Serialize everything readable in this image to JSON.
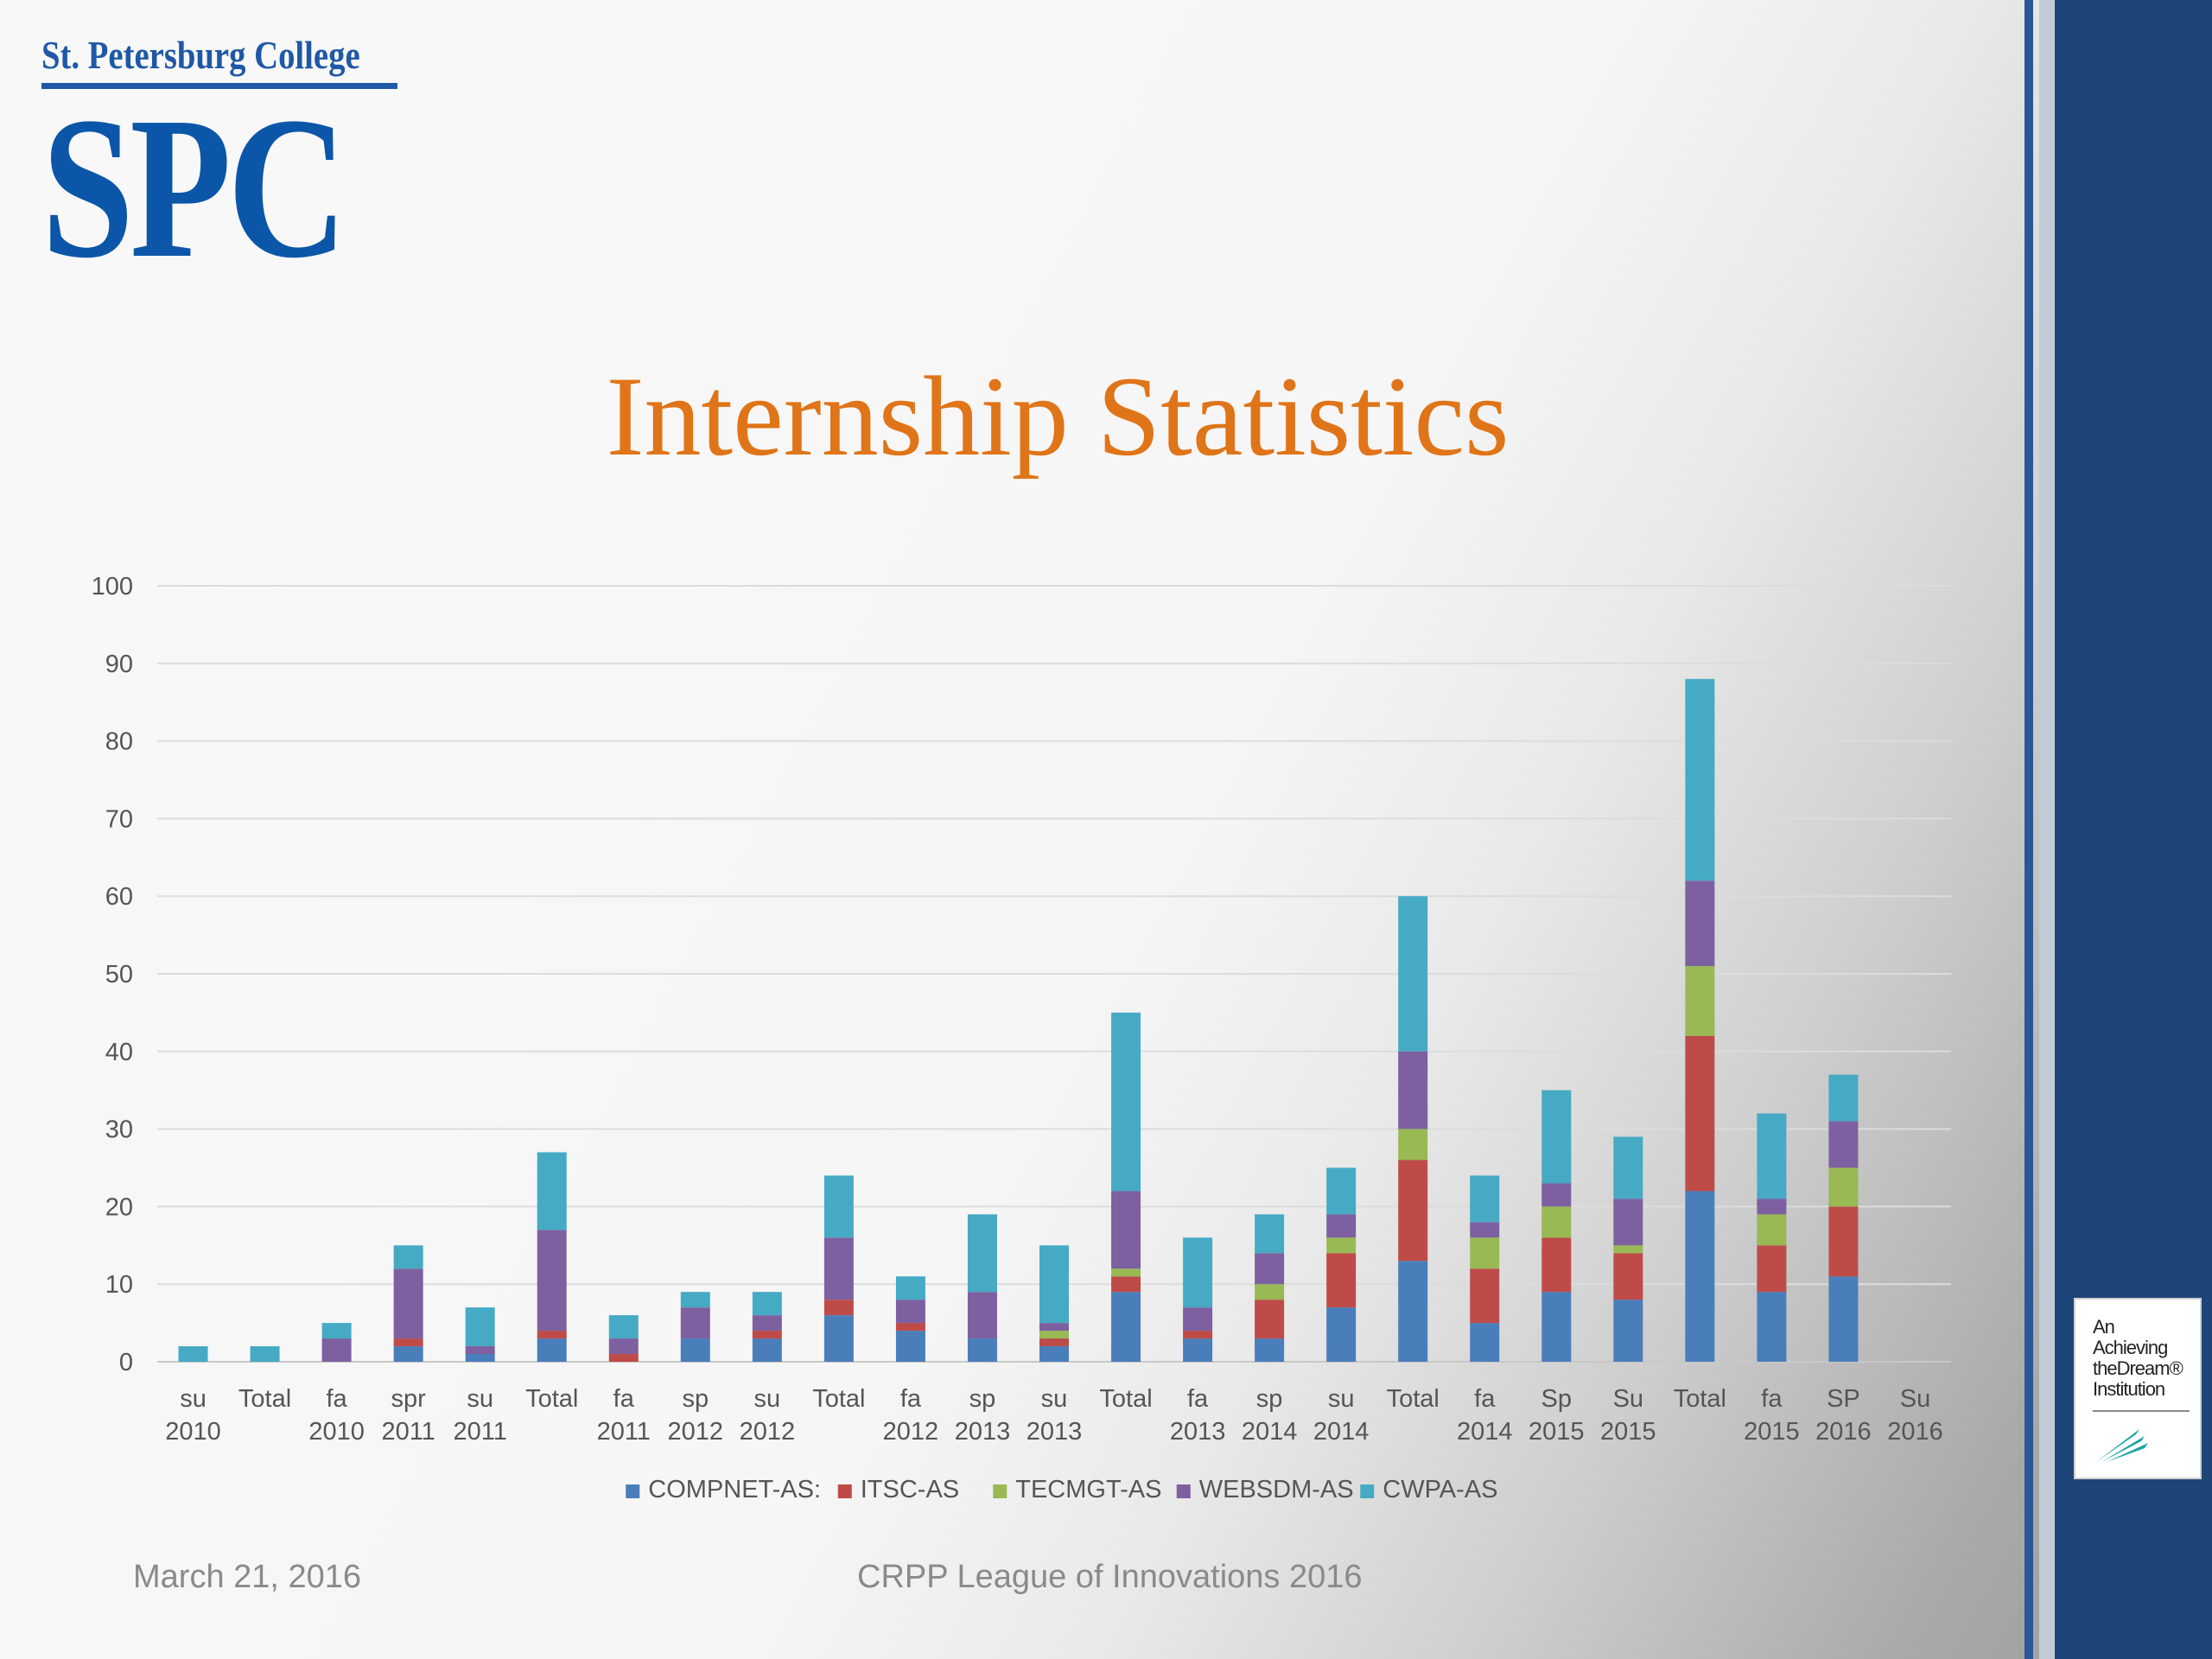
{
  "logo": {
    "top_text": "St. Petersburg College",
    "main_text": "SPC"
  },
  "slide": {
    "title": "Internship Statistics",
    "footer_date": "March 21, 2016",
    "footer_center": "CRPP League of Innovations 2016"
  },
  "badge": {
    "lines": [
      "An",
      "Achieving",
      "theDream®",
      "Institution"
    ]
  },
  "colors": {
    "accent_title": "#e07418",
    "brand_blue": "#1f58a6",
    "band": "#1e4577"
  },
  "chart_data": {
    "type": "bar",
    "stacked": true,
    "categories": [
      [
        "su",
        "2010"
      ],
      [
        "Total",
        ""
      ],
      [
        "fa",
        "2010"
      ],
      [
        "spr",
        "2011"
      ],
      [
        "su",
        "2011"
      ],
      [
        "Total",
        ""
      ],
      [
        "fa",
        "2011"
      ],
      [
        "sp",
        "2012"
      ],
      [
        "su",
        "2012"
      ],
      [
        "Total",
        ""
      ],
      [
        "fa",
        "2012"
      ],
      [
        "sp",
        "2013"
      ],
      [
        "su",
        "2013"
      ],
      [
        "Total",
        ""
      ],
      [
        "fa",
        "2013"
      ],
      [
        "sp",
        "2014"
      ],
      [
        "su",
        "2014"
      ],
      [
        "Total",
        ""
      ],
      [
        "fa",
        "2014"
      ],
      [
        "Sp",
        "2015"
      ],
      [
        "Su",
        "2015"
      ],
      [
        "Total",
        ""
      ],
      [
        "fa",
        "2015"
      ],
      [
        "SP",
        "2016"
      ],
      [
        "Su",
        "2016"
      ]
    ],
    "series": [
      {
        "name": "COMPNET-AS:",
        "color": "#4a7ebb",
        "values": [
          0,
          0,
          0,
          2,
          1,
          3,
          0,
          3,
          3,
          6,
          4,
          3,
          2,
          9,
          3,
          3,
          7,
          13,
          5,
          9,
          8,
          22,
          9,
          11,
          0
        ]
      },
      {
        "name": "ITSC-AS",
        "color": "#be4b48",
        "values": [
          0,
          0,
          0,
          1,
          0,
          1,
          1,
          0,
          1,
          2,
          1,
          0,
          1,
          2,
          1,
          5,
          7,
          13,
          7,
          7,
          6,
          20,
          6,
          9,
          0
        ]
      },
      {
        "name": "TECMGT-AS",
        "color": "#98b954",
        "values": [
          0,
          0,
          0,
          0,
          0,
          0,
          0,
          0,
          0,
          0,
          0,
          0,
          1,
          1,
          0,
          2,
          2,
          4,
          4,
          4,
          1,
          9,
          4,
          5,
          0
        ]
      },
      {
        "name": "WEBSDM-AS",
        "color": "#7d60a0",
        "values": [
          0,
          0,
          3,
          9,
          1,
          13,
          2,
          4,
          2,
          8,
          3,
          6,
          1,
          10,
          3,
          4,
          3,
          10,
          2,
          3,
          6,
          11,
          2,
          6,
          0
        ]
      },
      {
        "name": "CWPA-AS",
        "color": "#46aac5",
        "values": [
          2,
          2,
          2,
          3,
          5,
          10,
          3,
          2,
          3,
          8,
          3,
          10,
          10,
          23,
          9,
          5,
          6,
          20,
          6,
          12,
          8,
          26,
          11,
          6,
          0
        ]
      }
    ],
    "ylim": [
      0,
      100
    ],
    "yticks": [
      0,
      10,
      20,
      30,
      40,
      50,
      60,
      70,
      80,
      90,
      100
    ],
    "grid": true,
    "legend": "bottom",
    "xlabel": "",
    "ylabel": ""
  }
}
